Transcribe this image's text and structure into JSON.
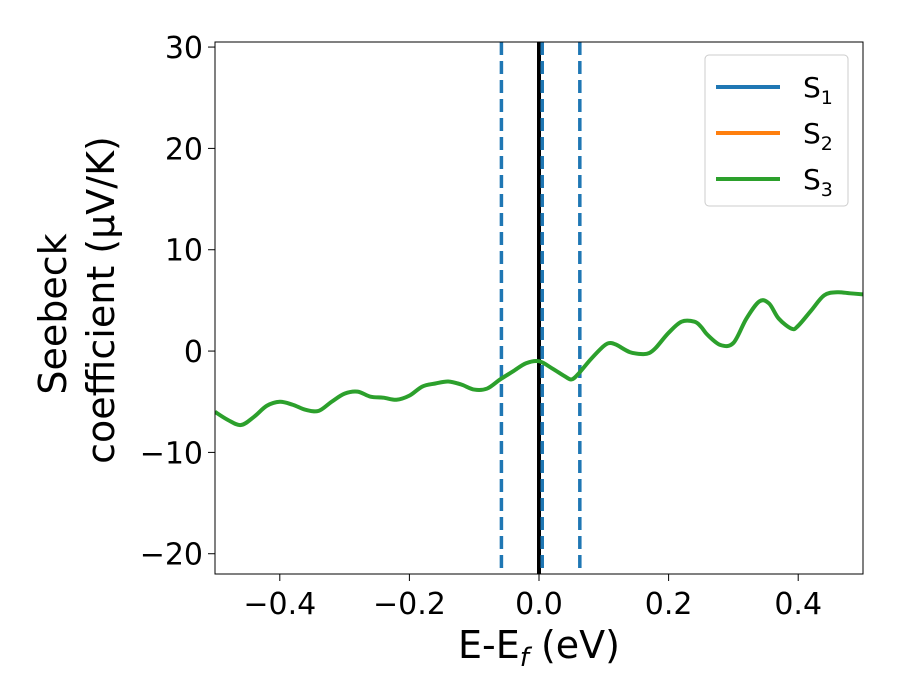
{
  "chart_data": {
    "type": "line",
    "xlabel": {
      "main": "E-E",
      "sub": "f",
      "unit": " (eV)"
    },
    "ylabel": {
      "line1": "Seebeck",
      "line2": "coefficient  (μV/K)"
    },
    "xlim": [
      -0.5,
      0.5
    ],
    "ylim": [
      -22,
      30.5
    ],
    "xticks": [
      -0.4,
      -0.2,
      0.0,
      0.2,
      0.4
    ],
    "xtick_labels": [
      "−0.4",
      "−0.2",
      "0.0",
      "0.2",
      "0.4"
    ],
    "yticks": [
      -20,
      -10,
      0,
      10,
      20,
      30
    ],
    "ytick_labels": [
      "−20",
      "−10",
      "0",
      "10",
      "20",
      "30"
    ],
    "grid": false,
    "legend_position": "top-right",
    "legend": [
      {
        "base": "S",
        "sub": "1",
        "color": "#1f77b4"
      },
      {
        "base": "S",
        "sub": "2",
        "color": "#ff7f0e"
      },
      {
        "base": "S",
        "sub": "3",
        "color": "#2ca02c"
      }
    ],
    "series": [
      {
        "color": "#2ca02c",
        "x": [
          -0.5,
          -0.48,
          -0.46,
          -0.44,
          -0.42,
          -0.4,
          -0.38,
          -0.36,
          -0.34,
          -0.32,
          -0.3,
          -0.28,
          -0.26,
          -0.24,
          -0.22,
          -0.2,
          -0.18,
          -0.16,
          -0.14,
          -0.12,
          -0.1,
          -0.08,
          -0.06,
          -0.04,
          -0.02,
          0.0,
          0.02,
          0.04,
          0.05,
          0.06,
          0.08,
          0.1,
          0.11,
          0.12,
          0.14,
          0.16,
          0.17,
          0.18,
          0.2,
          0.22,
          0.24,
          0.25,
          0.26,
          0.28,
          0.3,
          0.32,
          0.34,
          0.355,
          0.37,
          0.39,
          0.4,
          0.42,
          0.44,
          0.46,
          0.48,
          0.5
        ],
        "y": [
          -6.0,
          -6.8,
          -7.3,
          -6.5,
          -5.4,
          -5.0,
          -5.3,
          -5.8,
          -5.9,
          -5.0,
          -4.2,
          -4.0,
          -4.5,
          -4.6,
          -4.8,
          -4.4,
          -3.5,
          -3.2,
          -3.0,
          -3.3,
          -3.8,
          -3.7,
          -2.8,
          -2.0,
          -1.2,
          -1.0,
          -1.7,
          -2.5,
          -2.8,
          -2.3,
          -0.8,
          0.5,
          0.8,
          0.6,
          -0.1,
          -0.3,
          -0.2,
          0.3,
          1.8,
          2.9,
          2.9,
          2.4,
          1.6,
          0.6,
          0.8,
          3.2,
          4.9,
          4.7,
          3.2,
          2.2,
          2.5,
          4.0,
          5.5,
          5.8,
          5.7,
          5.6
        ]
      }
    ],
    "vlines": [
      {
        "x": -0.058,
        "style": "dashed",
        "color": "#1f77b4"
      },
      {
        "x": 0.0,
        "style": "solid",
        "color": "#000000"
      },
      {
        "x": 0.005,
        "style": "dashed",
        "color": "#1f77b4"
      },
      {
        "x": 0.063,
        "style": "dashed",
        "color": "#1f77b4"
      }
    ]
  }
}
